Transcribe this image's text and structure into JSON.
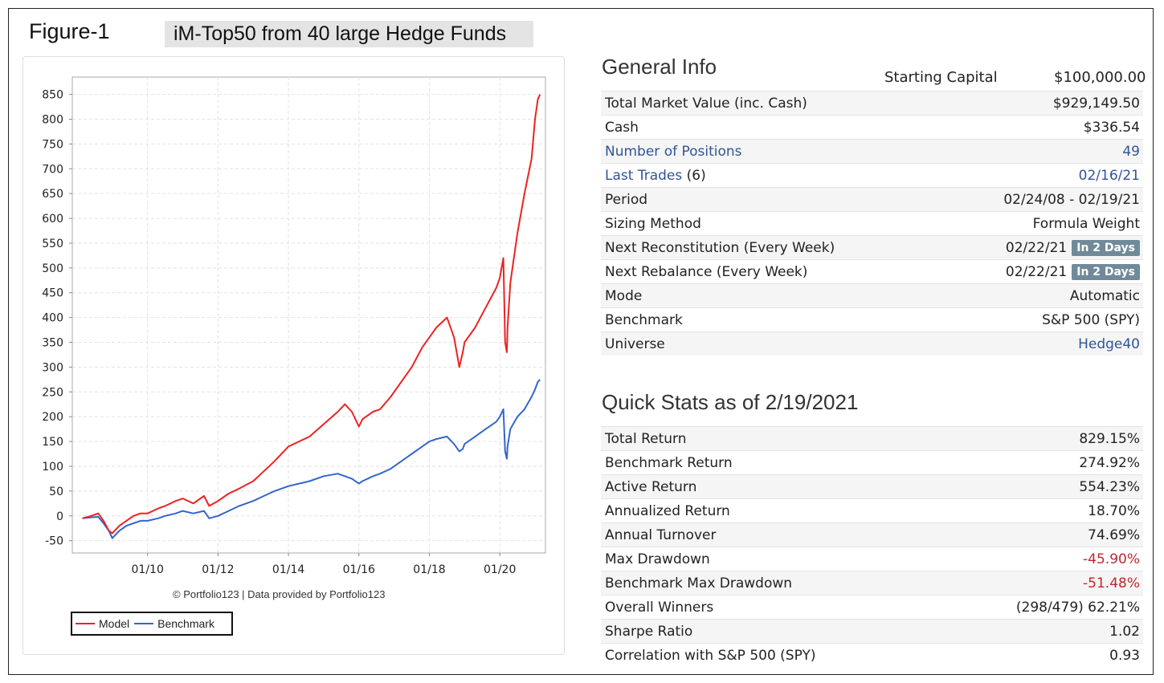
{
  "figure_label": "Figure-1",
  "figure_title": "iM-Top50 from 40 large Hedge Funds",
  "credit": "© Portfolio123 | Data provided by Portfolio123",
  "general_info": {
    "title": "General Info",
    "starting_capital_label": "Starting Capital",
    "starting_capital_value": "$100,000.00",
    "rows": [
      {
        "label": "Total Market Value (inc. Cash)",
        "value": "$929,149.50"
      },
      {
        "label": "Cash",
        "value": "$336.54"
      },
      {
        "label": "Number of Positions",
        "value": "49",
        "link": true
      },
      {
        "label": "Last Trades",
        "label_suffix": " (6)",
        "value": "02/16/21",
        "link": true
      },
      {
        "label": "Period",
        "value": "02/24/08 - 02/19/21"
      },
      {
        "label": "Sizing Method",
        "value": "Formula Weight"
      },
      {
        "label": "Next Reconstitution (Every Week)",
        "value": "02/22/21",
        "badge": "In 2 Days"
      },
      {
        "label": "Next Rebalance (Every Week)",
        "value": "02/22/21",
        "badge": "In 2 Days"
      },
      {
        "label": "Mode",
        "value": "Automatic"
      },
      {
        "label": "Benchmark",
        "value": "S&P 500 (SPY)"
      },
      {
        "label": "Universe",
        "value": "Hedge40",
        "value_link": true
      }
    ]
  },
  "quick_stats": {
    "title": "Quick Stats as of 2/19/2021",
    "rows": [
      {
        "label": "Total Return",
        "value": "829.15%"
      },
      {
        "label": "Benchmark Return",
        "value": "274.92%"
      },
      {
        "label": "Active Return",
        "value": "554.23%"
      },
      {
        "label": "Annualized Return",
        "value": "18.70%"
      },
      {
        "label": "Annual Turnover",
        "value": "74.69%"
      },
      {
        "label": "Max Drawdown",
        "value": "-45.90%",
        "negative": true
      },
      {
        "label": "Benchmark Max Drawdown",
        "value": "-51.48%",
        "negative": true
      },
      {
        "label": "Overall Winners",
        "value": "(298/479) 62.21%"
      },
      {
        "label": "Sharpe Ratio",
        "value": "1.02"
      },
      {
        "label": "Correlation with S&P 500 (SPY)",
        "value": "0.93"
      }
    ]
  },
  "colors": {
    "model": "#ee2222",
    "benchmark": "#3366cc"
  },
  "chart_data": {
    "type": "line",
    "title": "",
    "xlabel": "",
    "ylabel": "",
    "ylim": [
      -70,
      885
    ],
    "xlim": [
      2008.0,
      2021.25
    ],
    "yticks": [
      -50,
      0,
      50,
      100,
      150,
      200,
      250,
      300,
      350,
      400,
      450,
      500,
      550,
      600,
      650,
      700,
      750,
      800,
      850
    ],
    "xticks": [
      {
        "x": 2010.0,
        "label": "01/10"
      },
      {
        "x": 2012.0,
        "label": "01/12"
      },
      {
        "x": 2014.0,
        "label": "01/14"
      },
      {
        "x": 2016.0,
        "label": "01/16"
      },
      {
        "x": 2018.0,
        "label": "01/18"
      },
      {
        "x": 2020.0,
        "label": "01/20"
      }
    ],
    "grid": true,
    "legend_position": "bottom-left",
    "series": [
      {
        "name": "Model",
        "x": [
          2008.15,
          2008.4,
          2008.6,
          2008.75,
          2008.9,
          2009.0,
          2009.2,
          2009.4,
          2009.6,
          2009.8,
          2010.0,
          2010.3,
          2010.5,
          2010.8,
          2011.0,
          2011.3,
          2011.6,
          2011.75,
          2012.0,
          2012.3,
          2012.6,
          2013.0,
          2013.3,
          2013.6,
          2014.0,
          2014.3,
          2014.6,
          2015.0,
          2015.4,
          2015.6,
          2015.8,
          2016.0,
          2016.1,
          2016.4,
          2016.6,
          2016.9,
          2017.2,
          2017.5,
          2017.8,
          2018.0,
          2018.2,
          2018.5,
          2018.7,
          2018.85,
          2018.95,
          2019.0,
          2019.3,
          2019.6,
          2019.9,
          2020.0,
          2020.1,
          2020.15,
          2020.2,
          2020.22,
          2020.3,
          2020.5,
          2020.7,
          2020.9,
          2021.0,
          2021.08,
          2021.14
        ],
        "y": [
          -5,
          0,
          5,
          -10,
          -30,
          -35,
          -20,
          -10,
          0,
          5,
          5,
          15,
          20,
          30,
          35,
          25,
          40,
          20,
          30,
          45,
          55,
          70,
          90,
          110,
          140,
          150,
          160,
          185,
          210,
          225,
          210,
          180,
          195,
          210,
          215,
          240,
          270,
          300,
          340,
          360,
          380,
          400,
          360,
          300,
          330,
          350,
          380,
          420,
          460,
          480,
          520,
          350,
          330,
          380,
          470,
          570,
          650,
          720,
          800,
          840,
          850
        ]
      },
      {
        "name": "Benchmark",
        "x": [
          2008.15,
          2008.4,
          2008.6,
          2008.75,
          2008.9,
          2009.0,
          2009.2,
          2009.4,
          2009.6,
          2009.8,
          2010.0,
          2010.3,
          2010.5,
          2010.8,
          2011.0,
          2011.3,
          2011.6,
          2011.75,
          2012.0,
          2012.3,
          2012.6,
          2013.0,
          2013.3,
          2013.6,
          2014.0,
          2014.3,
          2014.6,
          2015.0,
          2015.4,
          2015.6,
          2015.8,
          2016.0,
          2016.1,
          2016.4,
          2016.6,
          2016.9,
          2017.2,
          2017.5,
          2017.8,
          2018.0,
          2018.2,
          2018.5,
          2018.7,
          2018.85,
          2018.95,
          2019.0,
          2019.3,
          2019.6,
          2019.9,
          2020.0,
          2020.1,
          2020.15,
          2020.2,
          2020.22,
          2020.3,
          2020.5,
          2020.7,
          2020.9,
          2021.0,
          2021.08,
          2021.14
        ],
        "y": [
          -5,
          -3,
          -2,
          -15,
          -30,
          -45,
          -30,
          -20,
          -15,
          -10,
          -10,
          -5,
          0,
          5,
          10,
          5,
          10,
          -5,
          0,
          10,
          20,
          30,
          40,
          50,
          60,
          65,
          70,
          80,
          85,
          80,
          75,
          65,
          70,
          80,
          85,
          95,
          110,
          125,
          140,
          150,
          155,
          160,
          145,
          130,
          135,
          145,
          160,
          175,
          190,
          200,
          215,
          130,
          115,
          140,
          175,
          200,
          215,
          240,
          255,
          270,
          275
        ]
      }
    ]
  }
}
